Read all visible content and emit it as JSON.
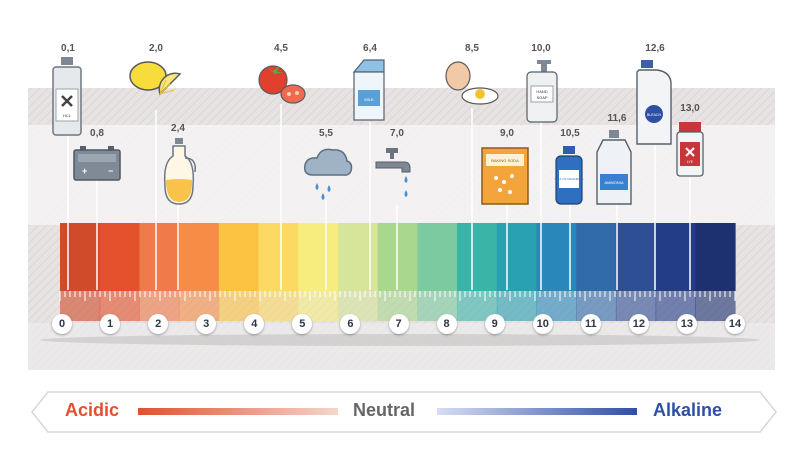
{
  "ph_scale": {
    "colors": [
      "#cf4b2a",
      "#e3522d",
      "#f07a4a",
      "#f58d47",
      "#fcc342",
      "#fbd963",
      "#f7ec7e",
      "#d6e59a",
      "#a8d78d",
      "#7ccaa0",
      "#3bb4a8",
      "#2aa0b3",
      "#2a87b9",
      "#316aa8",
      "#2e4f94",
      "#233d87",
      "#1d3170"
    ],
    "numbers": [
      "0",
      "1",
      "2",
      "3",
      "4",
      "5",
      "6",
      "7",
      "8",
      "9",
      "10",
      "11",
      "12",
      "13",
      "14"
    ]
  },
  "substances": [
    {
      "value": "0,1",
      "icon": "hcl-bottle-icon",
      "text": "HCL"
    },
    {
      "value": "0,8",
      "icon": "car-battery-icon"
    },
    {
      "value": "2,0",
      "icon": "lemon-icon"
    },
    {
      "value": "2,4",
      "icon": "vinegar-jar-icon"
    },
    {
      "value": "4,5",
      "icon": "tomato-icon"
    },
    {
      "value": "5,5",
      "icon": "rain-cloud-icon"
    },
    {
      "value": "6,4",
      "icon": "milk-carton-icon",
      "text": "MILK"
    },
    {
      "value": "7,0",
      "icon": "water-tap-icon"
    },
    {
      "value": "8,5",
      "icon": "egg-icon"
    },
    {
      "value": "9,0",
      "icon": "baking-soda-box-icon",
      "text": "BAKING SODA"
    },
    {
      "value": "10,0",
      "icon": "hand-soap-icon",
      "text": "HAND SOAP"
    },
    {
      "value": "10,5",
      "icon": "milk-of-magnesia-icon",
      "text": "MILK OF MAGNESIA"
    },
    {
      "value": "11,6",
      "icon": "ammonia-jug-icon",
      "text": "AMMONIA"
    },
    {
      "value": "12,6",
      "icon": "bleach-jug-icon",
      "text": "BLEACH"
    },
    {
      "value": "13,0",
      "icon": "lye-container-icon",
      "text": "LYE"
    }
  ],
  "legend": {
    "acidic": "Acidic",
    "neutral": "Neutral",
    "alkaline": "Alkaline",
    "acidic_color": "#e2502e",
    "alkaline_color": "#2f4fa5"
  }
}
